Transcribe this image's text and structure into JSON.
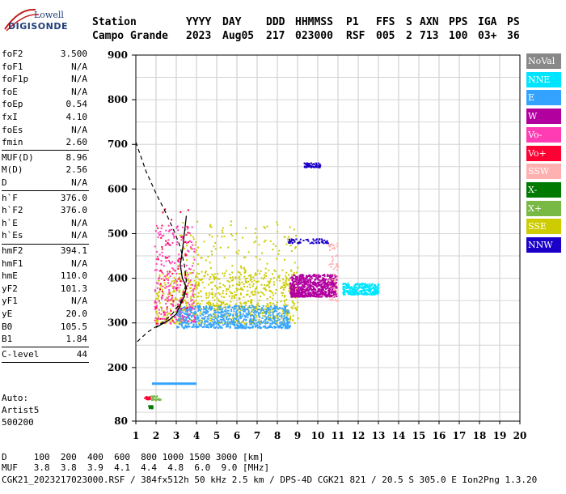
{
  "logo": {
    "line1": "Lowell",
    "line2": "DIGISONDE"
  },
  "header": {
    "row1": [
      {
        "x": 114,
        "t": "Station"
      },
      {
        "x": 230,
        "t": "YYYY"
      },
      {
        "x": 275,
        "t": "DAY"
      },
      {
        "x": 329,
        "t": "DDD"
      },
      {
        "x": 365,
        "t": "HHMMSS"
      },
      {
        "x": 428,
        "t": "P1"
      },
      {
        "x": 465,
        "t": "FFS"
      },
      {
        "x": 502,
        "t": "S"
      },
      {
        "x": 519,
        "t": "AXN"
      },
      {
        "x": 555,
        "t": "PPS"
      },
      {
        "x": 591,
        "t": "IGA"
      },
      {
        "x": 627,
        "t": "PS"
      }
    ],
    "row2": [
      {
        "x": 114,
        "t": "Campo Grande"
      },
      {
        "x": 230,
        "t": "2023"
      },
      {
        "x": 275,
        "t": "Aug05"
      },
      {
        "x": 329,
        "t": "217"
      },
      {
        "x": 365,
        "t": "023000"
      },
      {
        "x": 428,
        "t": "RSF"
      },
      {
        "x": 465,
        "t": "005"
      },
      {
        "x": 502,
        "t": "2"
      },
      {
        "x": 519,
        "t": "713"
      },
      {
        "x": 555,
        "t": "100"
      },
      {
        "x": 591,
        "t": "03+"
      },
      {
        "x": 627,
        "t": "36"
      }
    ]
  },
  "params": [
    {
      "k": "foF2",
      "v": "3.500"
    },
    {
      "k": "foF1",
      "v": "N/A"
    },
    {
      "k": "foF1p",
      "v": "N/A"
    },
    {
      "k": "foE",
      "v": "N/A"
    },
    {
      "k": "foEp",
      "v": "0.54"
    },
    {
      "k": "fxI",
      "v": "4.10"
    },
    {
      "k": "foEs",
      "v": "N/A"
    },
    {
      "k": "fmin",
      "v": "2.60"
    },
    {
      "k": "MUF(D)",
      "v": "8.96"
    },
    {
      "k": "M(D)",
      "v": "2.56"
    },
    {
      "k": "D",
      "v": "N/A"
    },
    {
      "k": "h`F",
      "v": "376.0"
    },
    {
      "k": "h`F2",
      "v": "376.0"
    },
    {
      "k": "h`E",
      "v": "N/A"
    },
    {
      "k": "h`Es",
      "v": "N/A"
    },
    {
      "k": "hmF2",
      "v": "394.1"
    },
    {
      "k": "hmF1",
      "v": "N/A"
    },
    {
      "k": "hmE",
      "v": "110.0"
    },
    {
      "k": "yF2",
      "v": "101.3"
    },
    {
      "k": "yF1",
      "v": "N/A"
    },
    {
      "k": "yE",
      "v": "20.0"
    },
    {
      "k": "B0",
      "v": "105.5"
    },
    {
      "k": "B1",
      "v": "1.84"
    },
    {
      "k": "C-level",
      "v": "44"
    }
  ],
  "auto": {
    "l1": "Auto:",
    "l2": "Artist5",
    "l3": "500200"
  },
  "legend": [
    {
      "label": "NoVal",
      "color": "#888888"
    },
    {
      "label": "NNE",
      "color": "#00e5ff"
    },
    {
      "label": "E",
      "color": "#33a3ff"
    },
    {
      "label": "W",
      "color": "#b2009f"
    },
    {
      "label": "Vo-",
      "color": "#ff3cb4"
    },
    {
      "label": "Vo+",
      "color": "#ff0033"
    },
    {
      "label": "SSW",
      "color": "#ffb0b0"
    },
    {
      "label": "X-",
      "color": "#007a00"
    },
    {
      "label": "X+",
      "color": "#78b845"
    },
    {
      "label": "SSE",
      "color": "#cccc00"
    },
    {
      "label": "NNW",
      "color": "#1a00c8"
    }
  ],
  "footer": {
    "row1": "D     100  200  400  600  800 1000 1500 3000 [km]",
    "row2": "MUF   3.8  3.8  3.9  4.1  4.4  4.8  6.0  9.0 [MHz]",
    "row3": "CGK21_2023217023000.RSF / 384fx512h 50 kHz 2.5 km / DPS-4D CGK21 821 / 20.5 S 305.0 E Ion2Png 1.3.20"
  },
  "chart_data": {
    "type": "scatter",
    "title": "",
    "xlabel": "",
    "ylabel": "",
    "x_unit": "MHz",
    "y_unit": "km",
    "xlim": [
      1,
      20
    ],
    "ylim": [
      80,
      900
    ],
    "x_ticks": [
      1,
      2,
      3,
      4,
      5,
      6,
      7,
      8,
      9,
      10,
      11,
      12,
      13,
      14,
      15,
      16,
      17,
      18,
      19,
      20
    ],
    "y_ticks": [
      80,
      200,
      300,
      400,
      500,
      600,
      700,
      800,
      900
    ],
    "grid": true,
    "legend_position": "right",
    "clusters": [
      {
        "mode": "SSE",
        "color": "#cccc00",
        "x": [
          1.9,
          9.0
        ],
        "y": [
          300,
          420
        ],
        "density": "high"
      },
      {
        "mode": "SSE",
        "color": "#cccc00",
        "x": [
          3.0,
          9.0
        ],
        "y": [
          330,
          530
        ],
        "density": "medium"
      },
      {
        "mode": "E",
        "color": "#33a3ff",
        "x": [
          3.0,
          8.6
        ],
        "y": [
          290,
          340
        ],
        "density": "high"
      },
      {
        "mode": "W",
        "color": "#b2009f",
        "x": [
          8.6,
          10.9
        ],
        "y": [
          360,
          410
        ],
        "density": "high"
      },
      {
        "mode": "NNE",
        "color": "#00e5ff",
        "x": [
          11.2,
          13.0
        ],
        "y": [
          365,
          390
        ],
        "density": "medium"
      },
      {
        "mode": "Vo-",
        "color": "#ff3cb4",
        "x": [
          1.9,
          3.9
        ],
        "y": [
          300,
          520
        ],
        "density": "medium"
      },
      {
        "mode": "Vo+",
        "color": "#ff0033",
        "x": [
          1.8,
          3.6
        ],
        "y": [
          300,
          560
        ],
        "density": "low"
      },
      {
        "mode": "NNW",
        "color": "#1a00c8",
        "x": [
          8.5,
          10.5
        ],
        "y": [
          480,
          490
        ],
        "density": "low"
      },
      {
        "mode": "NNW",
        "color": "#1a00c8",
        "x": [
          9.3,
          10.1
        ],
        "y": [
          650,
          660
        ],
        "density": "low"
      },
      {
        "mode": "SSW",
        "color": "#ffb0b0",
        "x": [
          10.5,
          11.0
        ],
        "y": [
          350,
          480
        ],
        "density": "low"
      }
    ],
    "sporadic_line": {
      "mode": "E",
      "color": "#33a3ff",
      "x": [
        1.8,
        4.0
      ],
      "y": [
        164,
        164
      ]
    },
    "low_clusters": [
      {
        "mode": "X+",
        "color": "#78b845",
        "x": [
          1.7,
          2.2
        ],
        "y": [
          128,
          138
        ]
      },
      {
        "mode": "Vo+",
        "color": "#ff0033",
        "x": [
          1.4,
          1.7
        ],
        "y": [
          130,
          136
        ]
      },
      {
        "mode": "X-",
        "color": "#007a00",
        "x": [
          1.6,
          1.8
        ],
        "y": [
          110,
          116
        ]
      }
    ],
    "profile": {
      "dashed": [
        [
          1.0,
          705
        ],
        [
          1.5,
          640
        ],
        [
          2.0,
          590
        ],
        [
          2.5,
          545
        ],
        [
          2.9,
          505
        ],
        [
          3.2,
          470
        ],
        [
          3.4,
          430
        ],
        [
          3.5,
          394
        ],
        [
          3.4,
          370
        ],
        [
          3.2,
          345
        ],
        [
          2.8,
          320
        ],
        [
          2.3,
          300
        ],
        [
          1.6,
          280
        ],
        [
          1.0,
          255
        ]
      ],
      "solid": [
        [
          3.5,
          540
        ],
        [
          3.4,
          500
        ],
        [
          3.3,
          460
        ],
        [
          3.2,
          430
        ],
        [
          3.3,
          400
        ],
        [
          3.5,
          380
        ],
        [
          3.4,
          360
        ],
        [
          3.2,
          340
        ],
        [
          3.0,
          320
        ],
        [
          2.6,
          305
        ],
        [
          2.2,
          295
        ],
        [
          2.0,
          290
        ]
      ]
    }
  }
}
